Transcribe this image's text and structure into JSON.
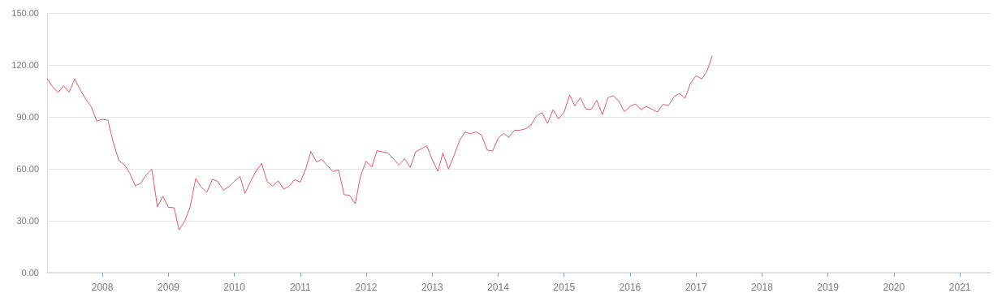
{
  "chart_data": {
    "type": "line",
    "x": [
      "2007-03",
      "2007-04",
      "2007-05",
      "2007-06",
      "2007-07",
      "2007-08",
      "2007-09",
      "2007-10",
      "2007-11",
      "2007-12",
      "2008-01",
      "2008-02",
      "2008-03",
      "2008-04",
      "2008-05",
      "2008-06",
      "2008-07",
      "2008-08",
      "2008-09",
      "2008-10",
      "2008-11",
      "2008-12",
      "2009-01",
      "2009-02",
      "2009-03",
      "2009-04",
      "2009-05",
      "2009-06",
      "2009-07",
      "2009-08",
      "2009-09",
      "2009-10",
      "2009-11",
      "2009-12",
      "2010-01",
      "2010-02",
      "2010-03",
      "2010-04",
      "2010-05",
      "2010-06",
      "2010-07",
      "2010-08",
      "2010-09",
      "2010-10",
      "2010-11",
      "2010-12",
      "2011-01",
      "2011-02",
      "2011-03",
      "2011-04",
      "2011-05",
      "2011-06",
      "2011-07",
      "2011-08",
      "2011-09",
      "2011-10",
      "2011-11",
      "2011-12",
      "2012-01",
      "2012-02",
      "2012-03",
      "2012-04",
      "2012-05",
      "2012-06",
      "2012-07",
      "2012-08",
      "2012-09",
      "2012-10",
      "2012-11",
      "2012-12",
      "2013-01",
      "2013-02",
      "2013-03",
      "2013-04",
      "2013-05",
      "2013-06",
      "2013-07",
      "2013-08",
      "2013-09",
      "2013-10",
      "2013-11",
      "2013-12",
      "2014-01",
      "2014-02",
      "2014-03",
      "2014-04",
      "2014-05",
      "2014-06",
      "2014-07",
      "2014-08",
      "2014-09",
      "2014-10",
      "2014-11",
      "2014-12",
      "2015-01",
      "2015-02",
      "2015-03",
      "2015-04",
      "2015-05",
      "2015-06",
      "2015-07",
      "2015-08",
      "2015-09",
      "2015-10",
      "2015-11",
      "2015-12",
      "2016-01",
      "2016-02",
      "2016-03",
      "2016-04",
      "2016-05",
      "2016-06",
      "2016-07",
      "2016-08",
      "2016-09",
      "2016-10",
      "2016-11",
      "2016-12",
      "2017-01",
      "2017-02",
      "2017-03",
      "2017-04"
    ],
    "series": [
      {
        "color": "#dc5a6e",
        "values": [
          112.2,
          107.2,
          104.2,
          107.9,
          104.2,
          111.9,
          105.6,
          100.2,
          95.8,
          87.5,
          88.6,
          88.0,
          75.5,
          64.8,
          62.5,
          57.5,
          50.2,
          51.7,
          56.7,
          59.7,
          38.0,
          44.2,
          37.8,
          37.5,
          24.8,
          29.7,
          38.0,
          54.4,
          49.5,
          46.4,
          53.8,
          52.8,
          47.7,
          49.7,
          52.8,
          55.6,
          45.8,
          52.8,
          58.6,
          63.1,
          52.8,
          50.0,
          53.1,
          48.3,
          50.0,
          53.8,
          52.3,
          60.2,
          70.0,
          63.9,
          65.5,
          61.7,
          58.4,
          59.4,
          45.0,
          44.8,
          39.8,
          55.9,
          64.4,
          61.1,
          70.5,
          69.8,
          69.2,
          65.6,
          62.2,
          65.9,
          60.8,
          69.8,
          71.6,
          73.4,
          65.3,
          58.6,
          69.2,
          59.8,
          67.6,
          76.3,
          81.2,
          80.2,
          81.4,
          79.4,
          70.9,
          70.2,
          77.8,
          80.5,
          78.1,
          82.3,
          82.3,
          83.1,
          85.3,
          90.6,
          92.5,
          86.2,
          94.1,
          88.9,
          92.7,
          102.7,
          96.4,
          101.1,
          94.5,
          94.5,
          99.5,
          91.3,
          101.1,
          102.3,
          98.9,
          93.0,
          96.1,
          97.5,
          94.2,
          96.0,
          94.5,
          92.7,
          97.2,
          96.6,
          101.6,
          103.5,
          100.8,
          109.4,
          113.8,
          111.9,
          116.1,
          125.3
        ]
      }
    ],
    "xlim": [
      "2007-03",
      "2021-06-20"
    ],
    "xticks": [
      "2008",
      "2009",
      "2010",
      "2011",
      "2012",
      "2013",
      "2014",
      "2015",
      "2016",
      "2017",
      "2018",
      "2019",
      "2020",
      "2021"
    ],
    "ylim": [
      0,
      150
    ],
    "yticks": [
      {
        "value": 0,
        "label": "0.00"
      },
      {
        "value": 30,
        "label": "30.00"
      },
      {
        "value": 60,
        "label": "60.00"
      },
      {
        "value": 90,
        "label": "90.00"
      },
      {
        "value": 120,
        "label": "120.00"
      },
      {
        "value": 150,
        "label": "150.00"
      }
    ],
    "grid": "y",
    "marker": "none",
    "line_style": "solid"
  }
}
